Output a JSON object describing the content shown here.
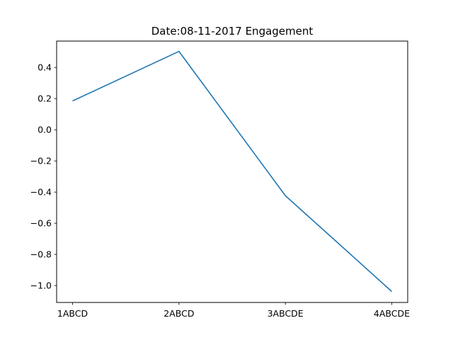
{
  "chart_data": {
    "type": "line",
    "title": "Date:08-11-2017 Engagement",
    "xlabel": "",
    "ylabel": "",
    "categories": [
      "1ABCD",
      "2ABCD",
      "3ABCDE",
      "4ABCDE"
    ],
    "series": [
      {
        "values": [
          0.185,
          0.503,
          -0.423,
          -1.038
        ],
        "color": "#1f77b4"
      }
    ],
    "yticks": [
      0.4,
      0.2,
      0.0,
      -0.2,
      -0.4,
      -0.6,
      -0.8,
      -1.0
    ],
    "ytick_labels": [
      "0.4",
      "0.2",
      "0.0",
      "−0.2",
      "−0.4",
      "−0.6",
      "−0.8",
      "−1.0"
    ],
    "ylim": [
      -1.1086,
      0.5692
    ],
    "grid": false,
    "legend": "none"
  }
}
